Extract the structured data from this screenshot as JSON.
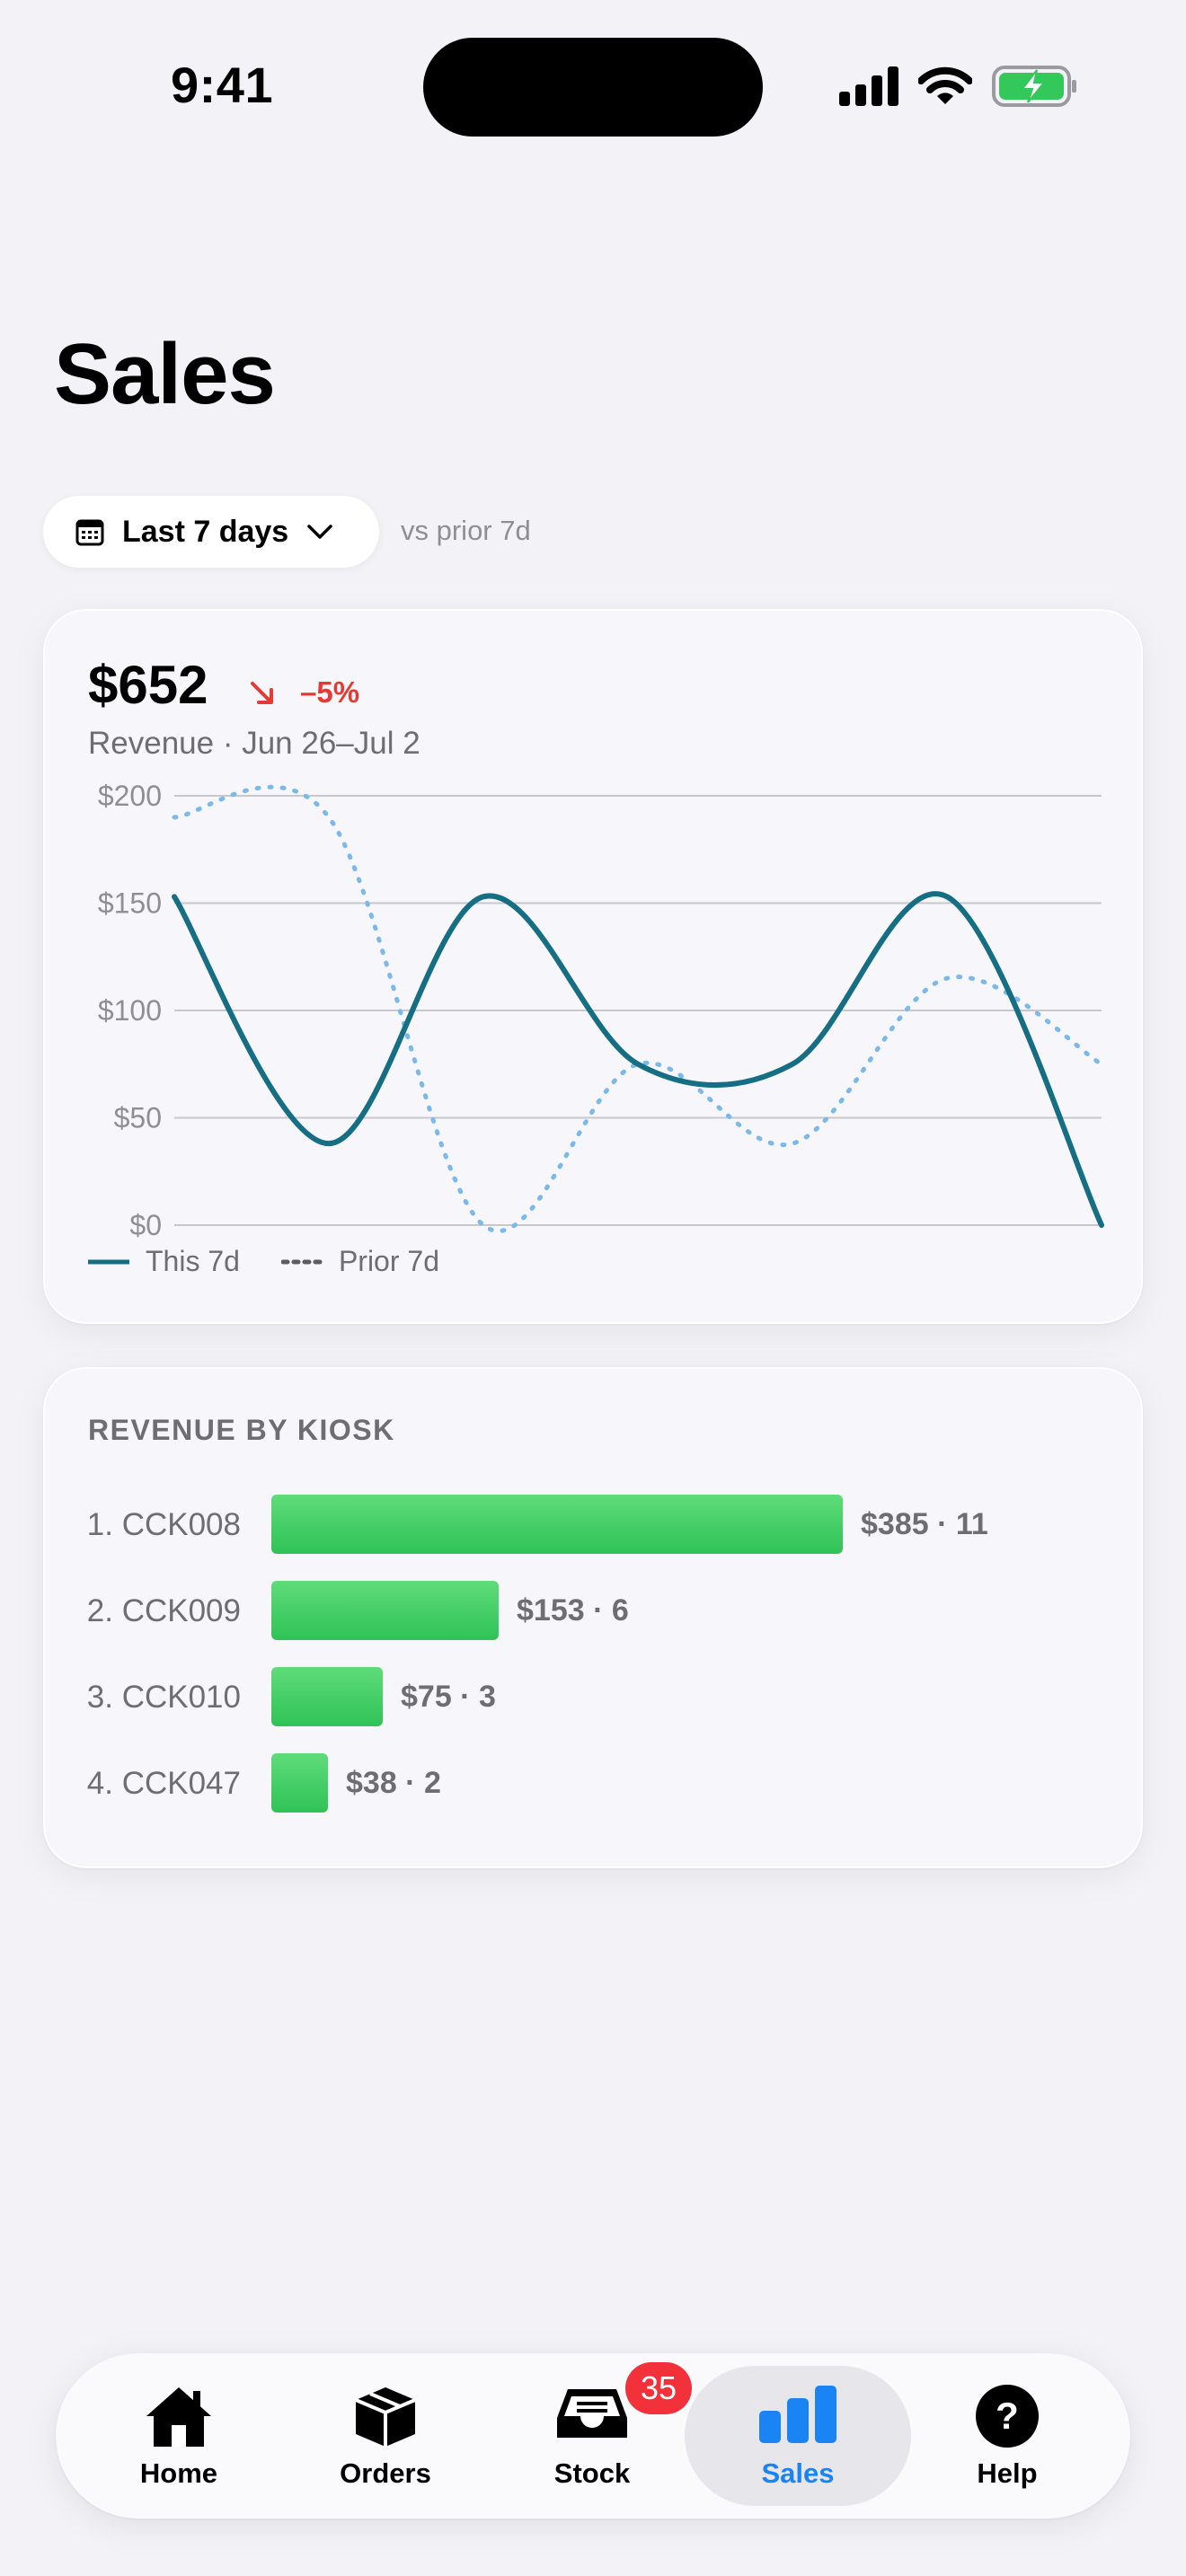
{
  "status": {
    "time": "9:41"
  },
  "page": {
    "title": "Sales"
  },
  "range": {
    "label": "Last 7 days",
    "compare": "vs prior 7d"
  },
  "revenue": {
    "value": "$652",
    "change": "–5%",
    "subtitle": "Revenue · Jun 26–Jul 2"
  },
  "chart_data": {
    "type": "line",
    "ylim": [
      0,
      200
    ],
    "yticks": [
      "$200",
      "$150",
      "$100",
      "$50",
      "$0"
    ],
    "ytick_values": [
      200,
      150,
      100,
      50,
      0
    ],
    "grid": true,
    "legend_position": "bottom-left",
    "x": [
      1,
      2,
      3,
      4,
      5,
      6,
      7
    ],
    "series": [
      {
        "name": "This 7d",
        "values": [
          153,
          38,
          153,
          75,
          75,
          153,
          0
        ],
        "style": "solid",
        "color": "#166e85"
      },
      {
        "name": "Prior 7d",
        "values": [
          190,
          190,
          0,
          75,
          38,
          115,
          75
        ],
        "style": "dotted",
        "color": "#7ab9ea"
      }
    ]
  },
  "legend": {
    "this_label": "This 7d",
    "prior_label": "Prior 7d"
  },
  "kiosks": {
    "title": "REVENUE BY KIOSK",
    "max_value": 385,
    "rows": [
      {
        "name": "1. CCK008",
        "value": 385,
        "label": "$385 · 11"
      },
      {
        "name": "2. CCK009",
        "value": 153,
        "label": "$153 · 6"
      },
      {
        "name": "3. CCK010",
        "value": 75,
        "label": "$75 · 3"
      },
      {
        "name": "4. CCK047",
        "value": 38,
        "label": "$38 · 2"
      }
    ]
  },
  "tabs": {
    "home": "Home",
    "orders": "Orders",
    "stock": "Stock",
    "stock_badge": "35",
    "sales": "Sales",
    "help": "Help"
  },
  "colors": {
    "accent": "#1a84f5",
    "negative": "#e53935",
    "bar": "#34c759"
  }
}
